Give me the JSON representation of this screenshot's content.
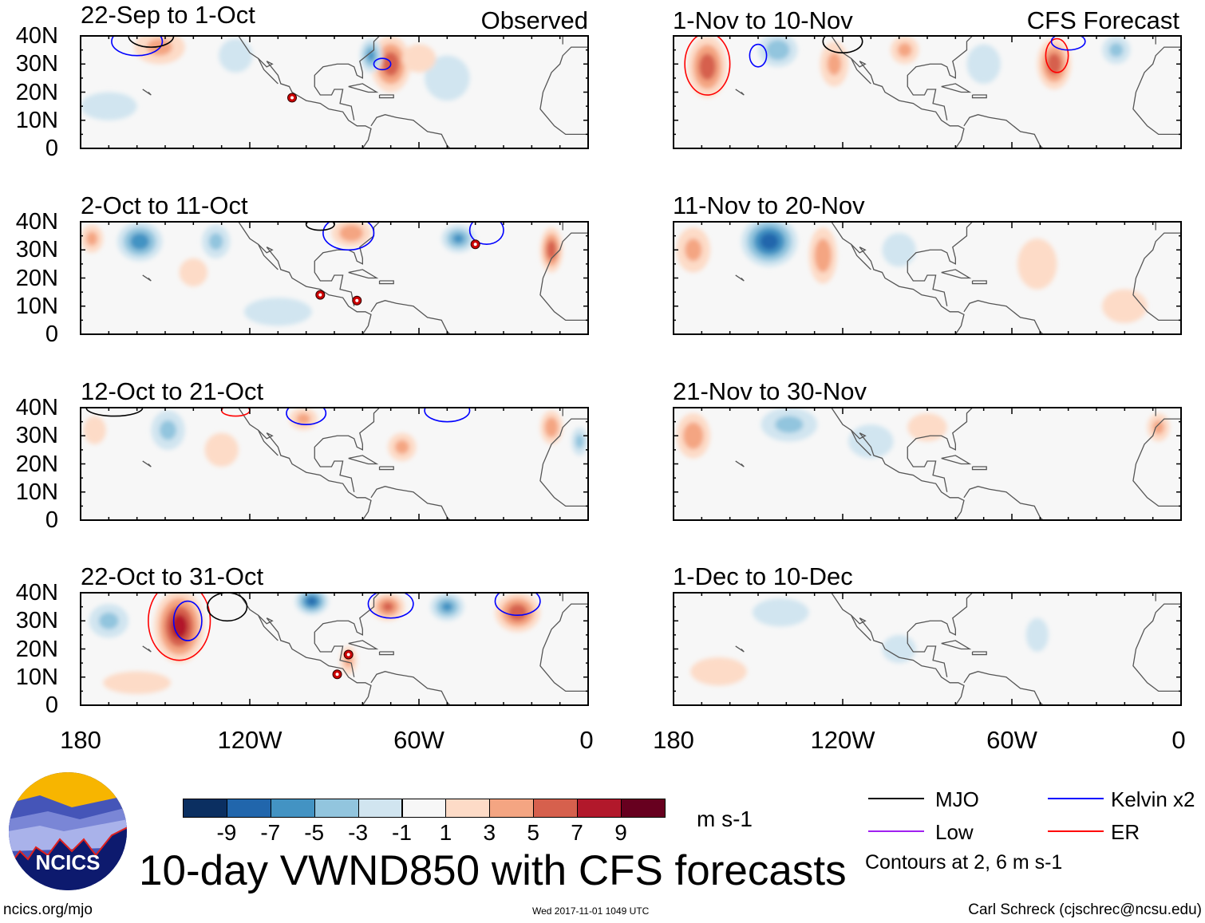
{
  "figure": {
    "title": "10-day VWND850 with CFS forecasts",
    "url": "ncics.org/mjo",
    "timestamp": "Wed 2017-11-01 1049 UTC",
    "author": "Carl Schreck (cjschrec@ncsu.edu)",
    "logo_text": "NCICS"
  },
  "column_labels": {
    "observed": "Observed",
    "forecast": "CFS Forecast"
  },
  "lat_ticks": [
    "40N",
    "30N",
    "20N",
    "10N",
    "0"
  ],
  "lon_ticks": [
    "180",
    "120W",
    "60W",
    "0"
  ],
  "colorbar": {
    "unit": "m s-1",
    "ticks": [
      "-9",
      "-7",
      "-5",
      "-3",
      "-1",
      "1",
      "3",
      "5",
      "7",
      "9"
    ],
    "colors": [
      "#0b2f61",
      "#2166ac",
      "#4393c3",
      "#92c5de",
      "#d1e5f0",
      "#f7f7f7",
      "#fddbc7",
      "#f4a582",
      "#d6604d",
      "#b2182b",
      "#67001f"
    ]
  },
  "legend": {
    "items": [
      {
        "label": "MJO",
        "color": "#000000"
      },
      {
        "label": "Kelvin x2",
        "color": "#0000ff"
      },
      {
        "label": "Low",
        "color": "#a020f0"
      },
      {
        "label": "ER",
        "color": "#ff0000"
      }
    ],
    "note": "Contours at 2, 6 m s-1"
  },
  "chart_data": {
    "type": "heatmap",
    "variable": "850-hPa meridional wind anomaly",
    "unit": "m s-1",
    "xlim_lon": [
      -180,
      0
    ],
    "ylim_lat": [
      0,
      40
    ],
    "panels": [
      {
        "title": "22-Sep to 1-Oct",
        "kind": "Observed",
        "anomalies": [
          {
            "lon": -70,
            "lat": 30,
            "v": 6,
            "rx": 7,
            "ry": 10
          },
          {
            "lon": -77,
            "lat": 33,
            "v": -5,
            "rx": 4,
            "ry": 6
          },
          {
            "lon": -152,
            "lat": 36,
            "v": 3,
            "rx": 9,
            "ry": 6
          },
          {
            "lon": -125,
            "lat": 33,
            "v": -2,
            "rx": 6,
            "ry": 6
          },
          {
            "lon": -50,
            "lat": 25,
            "v": -2,
            "rx": 8,
            "ry": 8
          },
          {
            "lon": -170,
            "lat": 15,
            "v": -2,
            "rx": 10,
            "ry": 5
          },
          {
            "lon": -60,
            "lat": 32,
            "v": 2,
            "rx": 6,
            "ry": 5
          }
        ],
        "contours": [
          {
            "type": "Kelvin",
            "lon": -160,
            "lat": 38,
            "rx": 9,
            "ry": 5
          },
          {
            "type": "MJO",
            "lon": -155,
            "lat": 40,
            "rx": 8,
            "ry": 4
          },
          {
            "type": "Kelvin",
            "lon": -73,
            "lat": 30,
            "rx": 3,
            "ry": 2
          }
        ],
        "storms": [
          {
            "lon": -105,
            "lat": 18
          }
        ]
      },
      {
        "title": "2-Oct to 11-Oct",
        "kind": "Observed",
        "anomalies": [
          {
            "lon": -159,
            "lat": 33,
            "v": -6,
            "rx": 8,
            "ry": 7
          },
          {
            "lon": -176,
            "lat": 34,
            "v": 3,
            "rx": 4,
            "ry": 5
          },
          {
            "lon": -132,
            "lat": 33,
            "v": -3,
            "rx": 5,
            "ry": 6
          },
          {
            "lon": -84,
            "lat": 36,
            "v": 4,
            "rx": 7,
            "ry": 5
          },
          {
            "lon": -46,
            "lat": 34,
            "v": -5,
            "rx": 6,
            "ry": 5
          },
          {
            "lon": -13,
            "lat": 30,
            "v": 6,
            "rx": 4,
            "ry": 8
          },
          {
            "lon": -140,
            "lat": 22,
            "v": 2,
            "rx": 5,
            "ry": 5
          },
          {
            "lon": -110,
            "lat": 8,
            "v": -2,
            "rx": 12,
            "ry": 5
          }
        ],
        "contours": [
          {
            "type": "Kelvin",
            "lon": -85,
            "lat": 36,
            "rx": 9,
            "ry": 6
          },
          {
            "type": "MJO",
            "lon": -95,
            "lat": 39,
            "rx": 5,
            "ry": 2
          },
          {
            "type": "Kelvin",
            "lon": -36,
            "lat": 37,
            "rx": 6,
            "ry": 5
          }
        ],
        "storms": [
          {
            "lon": -95,
            "lat": 14
          },
          {
            "lon": -82,
            "lat": 12
          },
          {
            "lon": -40,
            "lat": 32
          }
        ]
      },
      {
        "title": "12-Oct to 21-Oct",
        "kind": "Observed",
        "anomalies": [
          {
            "lon": -13,
            "lat": 33,
            "v": 4,
            "rx": 4,
            "ry": 6
          },
          {
            "lon": -149,
            "lat": 32,
            "v": -3,
            "rx": 6,
            "ry": 7
          },
          {
            "lon": -66,
            "lat": 26,
            "v": 3,
            "rx": 5,
            "ry": 5
          },
          {
            "lon": -101,
            "lat": 36,
            "v": 3,
            "rx": 5,
            "ry": 4
          },
          {
            "lon": -130,
            "lat": 25,
            "v": 2,
            "rx": 6,
            "ry": 6
          },
          {
            "lon": -175,
            "lat": 32,
            "v": 2,
            "rx": 4,
            "ry": 5
          },
          {
            "lon": -3,
            "lat": 28,
            "v": -3,
            "rx": 3,
            "ry": 5
          }
        ],
        "contours": [
          {
            "type": "MJO",
            "lon": -168,
            "lat": 40,
            "rx": 10,
            "ry": 3
          },
          {
            "type": "Kelvin",
            "lon": -100,
            "lat": 38,
            "rx": 7,
            "ry": 4
          },
          {
            "type": "Kelvin",
            "lon": -50,
            "lat": 39,
            "rx": 8,
            "ry": 4
          },
          {
            "type": "ER",
            "lon": -125,
            "lat": 39,
            "rx": 5,
            "ry": 2
          }
        ],
        "storms": []
      },
      {
        "title": "22-Oct to 31-Oct",
        "kind": "Observed",
        "anomalies": [
          {
            "lon": -145,
            "lat": 28,
            "v": 8,
            "rx": 9,
            "ry": 13
          },
          {
            "lon": -98,
            "lat": 37,
            "v": -7,
            "rx": 6,
            "ry": 5
          },
          {
            "lon": -71,
            "lat": 35,
            "v": 5,
            "rx": 6,
            "ry": 5
          },
          {
            "lon": -50,
            "lat": 35,
            "v": -5,
            "rx": 6,
            "ry": 5
          },
          {
            "lon": -25,
            "lat": 33,
            "v": 6,
            "rx": 8,
            "ry": 7
          },
          {
            "lon": -170,
            "lat": 30,
            "v": -3,
            "rx": 7,
            "ry": 6
          },
          {
            "lon": -160,
            "lat": 8,
            "v": 2,
            "rx": 12,
            "ry": 4
          },
          {
            "lon": -85,
            "lat": 16,
            "v": 3,
            "rx": 3,
            "ry": 5
          }
        ],
        "contours": [
          {
            "type": "ER",
            "lon": -145,
            "lat": 30,
            "rx": 11,
            "ry": 14
          },
          {
            "type": "Kelvin",
            "lon": -142,
            "lat": 30,
            "rx": 5,
            "ry": 7
          },
          {
            "type": "MJO",
            "lon": -128,
            "lat": 35,
            "rx": 7,
            "ry": 5
          },
          {
            "type": "Kelvin",
            "lon": -70,
            "lat": 36,
            "rx": 8,
            "ry": 5
          },
          {
            "type": "Kelvin",
            "lon": -25,
            "lat": 37,
            "rx": 8,
            "ry": 5
          }
        ],
        "storms": [
          {
            "lon": -85,
            "lat": 18
          },
          {
            "lon": -89,
            "lat": 11
          }
        ]
      },
      {
        "title": "1-Nov to 10-Nov",
        "kind": "CFS Forecast",
        "anomalies": [
          {
            "lon": -168,
            "lat": 29,
            "v": 6,
            "rx": 7,
            "ry": 11
          },
          {
            "lon": -143,
            "lat": 35,
            "v": -4,
            "rx": 7,
            "ry": 6
          },
          {
            "lon": -123,
            "lat": 30,
            "v": 3,
            "rx": 5,
            "ry": 8
          },
          {
            "lon": -98,
            "lat": 35,
            "v": 3,
            "rx": 5,
            "ry": 5
          },
          {
            "lon": -45,
            "lat": 30,
            "v": 6,
            "rx": 6,
            "ry": 9
          },
          {
            "lon": -23,
            "lat": 35,
            "v": -3,
            "rx": 5,
            "ry": 5
          },
          {
            "lon": -70,
            "lat": 30,
            "v": -2,
            "rx": 6,
            "ry": 7
          }
        ],
        "contours": [
          {
            "type": "ER",
            "lon": -168,
            "lat": 30,
            "rx": 8,
            "ry": 11
          },
          {
            "type": "Kelvin",
            "lon": -150,
            "lat": 33,
            "rx": 3,
            "ry": 4
          },
          {
            "type": "MJO",
            "lon": -120,
            "lat": 38,
            "rx": 7,
            "ry": 4
          },
          {
            "type": "ER",
            "lon": -44,
            "lat": 33,
            "rx": 4,
            "ry": 6
          },
          {
            "type": "Kelvin",
            "lon": -40,
            "lat": 38,
            "rx": 6,
            "ry": 3
          }
        ],
        "storms": []
      },
      {
        "title": "11-Nov to 20-Nov",
        "kind": "CFS Forecast",
        "anomalies": [
          {
            "lon": -146,
            "lat": 33,
            "v": -8,
            "rx": 10,
            "ry": 9
          },
          {
            "lon": -127,
            "lat": 28,
            "v": 4,
            "rx": 5,
            "ry": 10
          },
          {
            "lon": -173,
            "lat": 30,
            "v": 3,
            "rx": 6,
            "ry": 8
          },
          {
            "lon": -51,
            "lat": 25,
            "v": 2,
            "rx": 7,
            "ry": 9
          },
          {
            "lon": -20,
            "lat": 10,
            "v": 2,
            "rx": 8,
            "ry": 6
          },
          {
            "lon": -100,
            "lat": 30,
            "v": -2,
            "rx": 6,
            "ry": 6
          }
        ],
        "contours": [],
        "storms": []
      },
      {
        "title": "21-Nov to 30-Nov",
        "kind": "CFS Forecast",
        "anomalies": [
          {
            "lon": -173,
            "lat": 30,
            "v": 4,
            "rx": 6,
            "ry": 8
          },
          {
            "lon": -139,
            "lat": 34,
            "v": -3,
            "rx": 10,
            "ry": 6
          },
          {
            "lon": -90,
            "lat": 33,
            "v": 2,
            "rx": 7,
            "ry": 5
          },
          {
            "lon": -8,
            "lat": 33,
            "v": 3,
            "rx": 4,
            "ry": 5
          },
          {
            "lon": -110,
            "lat": 28,
            "v": -2,
            "rx": 8,
            "ry": 6
          }
        ],
        "contours": [],
        "storms": []
      },
      {
        "title": "1-Dec to 10-Dec",
        "kind": "CFS Forecast",
        "anomalies": [
          {
            "lon": -142,
            "lat": 33,
            "v": -2,
            "rx": 10,
            "ry": 5
          },
          {
            "lon": -164,
            "lat": 12,
            "v": 2,
            "rx": 10,
            "ry": 5
          },
          {
            "lon": -51,
            "lat": 25,
            "v": -2,
            "rx": 4,
            "ry": 6
          },
          {
            "lon": -100,
            "lat": 20,
            "v": -2,
            "rx": 6,
            "ry": 5
          }
        ],
        "contours": [],
        "storms": []
      }
    ]
  }
}
